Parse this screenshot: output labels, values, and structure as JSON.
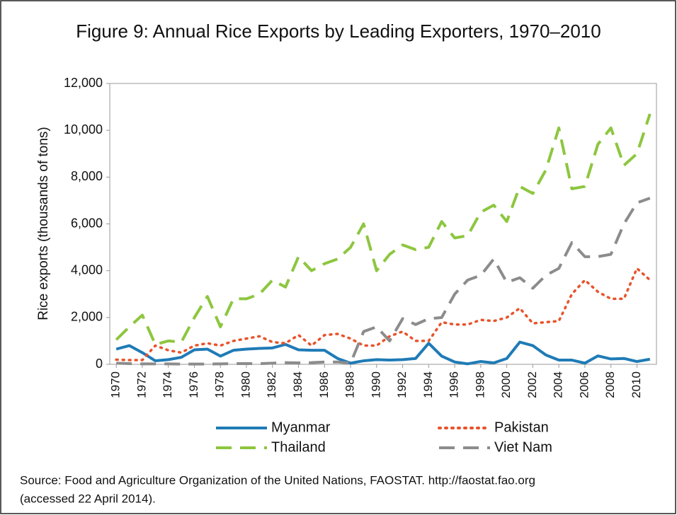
{
  "chart_data": {
    "type": "line",
    "title": "Figure 9: Annual Rice Exports by Leading Exporters, 1970–2010",
    "y_label": "Rice exports (thousands of tons)",
    "x": [
      1970,
      1971,
      1972,
      1973,
      1974,
      1975,
      1976,
      1977,
      1978,
      1979,
      1980,
      1981,
      1982,
      1983,
      1984,
      1985,
      1986,
      1987,
      1988,
      1989,
      1990,
      1991,
      1992,
      1993,
      1994,
      1995,
      1996,
      1997,
      1998,
      1999,
      2000,
      2001,
      2002,
      2003,
      2004,
      2005,
      2006,
      2007,
      2008,
      2009,
      2010,
      2011
    ],
    "xlim": [
      1969.5,
      2011.5
    ],
    "xticks": [
      1970,
      1972,
      1974,
      1976,
      1978,
      1980,
      1982,
      1984,
      1986,
      1988,
      1990,
      1992,
      1994,
      1996,
      1998,
      2000,
      2002,
      2004,
      2006,
      2008,
      2010
    ],
    "ylim": [
      0,
      12000
    ],
    "yticks": [
      0,
      {
        "value": 2000,
        "label": "2,000"
      },
      {
        "value": 4000,
        "label": "4,000"
      },
      {
        "value": 6000,
        "label": "6,000"
      },
      {
        "value": 8000,
        "label": "8,000"
      },
      {
        "value": 10000,
        "label": "10,000"
      },
      {
        "value": 12000,
        "label": "12,000"
      }
    ],
    "grid": false,
    "series": [
      {
        "name": "Myanmar",
        "color": "#1f7bb6",
        "line_style": "solid",
        "values": [
          650,
          800,
          500,
          150,
          200,
          300,
          620,
          650,
          350,
          600,
          650,
          680,
          700,
          850,
          620,
          600,
          600,
          250,
          50,
          150,
          200,
          180,
          200,
          250,
          900,
          350,
          100,
          20,
          120,
          60,
          250,
          950,
          800,
          400,
          180,
          180,
          50,
          360,
          230,
          250,
          120,
          220
        ]
      },
      {
        "name": "Pakistan",
        "color": "#e8532b",
        "line_style": "dotted",
        "values": [
          200,
          180,
          180,
          800,
          600,
          500,
          800,
          900,
          800,
          1000,
          1100,
          1200,
          950,
          900,
          1250,
          800,
          1250,
          1300,
          1100,
          800,
          800,
          1200,
          1400,
          1000,
          1000,
          1800,
          1700,
          1700,
          1900,
          1850,
          2000,
          2400,
          1750,
          1800,
          1850,
          3000,
          3600,
          3100,
          2800,
          2800,
          4100,
          3600
        ]
      },
      {
        "name": "Thailand",
        "color": "#8dc63f",
        "line_style": "dashed",
        "values": [
          1050,
          1600,
          2100,
          850,
          1000,
          950,
          2000,
          2900,
          1600,
          2800,
          2800,
          3000,
          3600,
          3300,
          4600,
          4000,
          4300,
          4500,
          5000,
          6000,
          4000,
          4700,
          5100,
          4900,
          5000,
          6100,
          5400,
          5500,
          6500,
          6800,
          6100,
          7600,
          7300,
          8300,
          10100,
          7500,
          7600,
          9400,
          10100,
          8500,
          9000,
          10700
        ]
      },
      {
        "name": "Viet Nam",
        "color": "#8c8c8c",
        "line_style": "dashed",
        "values": [
          50,
          30,
          20,
          20,
          20,
          10,
          10,
          10,
          20,
          30,
          30,
          30,
          50,
          70,
          60,
          70,
          100,
          100,
          50,
          1400,
          1600,
          1000,
          1950,
          1700,
          1950,
          2000,
          3000,
          3600,
          3800,
          4500,
          3500,
          3700,
          3250,
          3800,
          4100,
          5200,
          4600,
          4600,
          4700,
          6000,
          6900,
          7100
        ]
      }
    ],
    "source": [
      "Source: Food and Agriculture Organization of the United Nations, FAOSTAT. http://faostat.fao.org",
      "(accessed 22 April 2014)."
    ]
  }
}
